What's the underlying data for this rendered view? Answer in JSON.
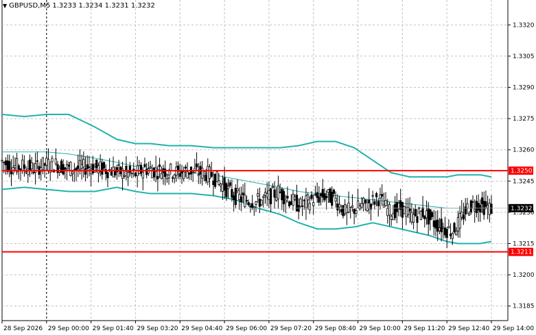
{
  "header": {
    "symbol": "GBPUSD,M5",
    "ohlc": "1.3233 1.3234 1.3231 1.3232",
    "menu_icon": "triangle-down-icon"
  },
  "colors": {
    "background": "#ffffff",
    "grid": "#c0c0c0",
    "band": "#20b2aa",
    "candle": "#000000",
    "level": "#ff0000",
    "price_tag_bg": "#000000",
    "level_tag_bg": "#ff0000"
  },
  "chart_data": {
    "type": "candlestick",
    "y_ticks": [
      "1.3320",
      "1.3305",
      "1.3290",
      "1.3275",
      "1.3260",
      "1.3245",
      "1.3230",
      "1.3215",
      "1.3200",
      "1.3185"
    ],
    "x_ticks": [
      "28 Sep 2026",
      "29 Sep 00:00",
      "29 Sep 01:40",
      "29 Sep 03:20",
      "29 Sep 04:40",
      "29 Sep 06:00",
      "29 Sep 07:20",
      "29 Sep 08:40",
      "29 Sep 10:00",
      "29 Sep 11:20",
      "29 Sep 12:40",
      "29 Sep 14:00"
    ],
    "ylim": [
      1.3178,
      1.3328
    ],
    "levels": [
      {
        "label": "1.3250",
        "value": 1.325
      },
      {
        "label": "1.3211",
        "value": 1.3211
      }
    ],
    "current_price": {
      "label": "1.3232",
      "value": 1.3232
    },
    "bollinger_upper": [
      1.3277,
      1.3276,
      1.3277,
      1.3277,
      1.3271,
      1.3265,
      1.3263,
      1.3263,
      1.3262,
      1.3262,
      1.3261,
      1.3261,
      1.3261,
      1.3261,
      1.3262,
      1.3264,
      1.3264,
      1.3261,
      1.3255,
      1.3249,
      1.3247,
      1.3247,
      1.3247,
      1.3248,
      1.3248,
      1.3248,
      1.3247
    ],
    "bollinger_middle": [
      1.3259,
      1.3259,
      1.3259,
      1.3258,
      1.3256,
      1.3254,
      1.3252,
      1.3251,
      1.325,
      1.3249,
      1.3248,
      1.3246,
      1.3244,
      1.3242,
      1.324,
      1.3239,
      1.3238,
      1.3237,
      1.3236,
      1.3235,
      1.3234,
      1.3233,
      1.3232,
      1.3232,
      1.3232,
      1.3232,
      1.3232
    ],
    "bollinger_lower": [
      1.3241,
      1.3242,
      1.3241,
      1.324,
      1.324,
      1.3242,
      1.324,
      1.3239,
      1.3239,
      1.3239,
      1.3238,
      1.3236,
      1.3232,
      1.3229,
      1.3225,
      1.3222,
      1.3222,
      1.3223,
      1.3225,
      1.3223,
      1.3221,
      1.3219,
      1.3216,
      1.3215,
      1.3215,
      1.3215,
      1.3216
    ],
    "band_x": [
      0,
      12,
      24,
      36,
      50,
      62,
      72,
      80,
      90,
      102,
      114,
      126,
      138,
      150,
      160,
      170,
      180,
      190,
      200,
      210,
      220,
      230,
      240,
      246,
      252,
      258,
      264
    ],
    "price_path": [
      1.3255,
      1.3252,
      1.3252,
      1.3251,
      1.3253,
      1.3253,
      1.3251,
      1.3251,
      1.3252,
      1.3251,
      1.325,
      1.3249,
      1.3248,
      1.3251,
      1.325,
      1.325,
      1.3249,
      1.325,
      1.3249,
      1.3248,
      1.3243,
      1.3238,
      1.3236,
      1.3235,
      1.3237,
      1.324,
      1.3236,
      1.3233,
      1.3236,
      1.3238,
      1.3237,
      1.323,
      1.3232,
      1.3234,
      1.3237,
      1.323,
      1.3232,
      1.3228,
      1.323,
      1.3225,
      1.3222,
      1.3221,
      1.3226,
      1.3232,
      1.3234,
      1.3232
    ],
    "path_x": [
      0,
      6,
      12,
      18,
      24,
      30,
      36,
      42,
      48,
      54,
      60,
      66,
      72,
      78,
      84,
      90,
      96,
      102,
      108,
      114,
      120,
      126,
      132,
      138,
      144,
      150,
      156,
      162,
      168,
      174,
      180,
      186,
      192,
      198,
      204,
      210,
      216,
      222,
      228,
      234,
      240,
      244,
      248,
      252,
      256,
      264
    ],
    "vertical_marker_index": 1
  }
}
